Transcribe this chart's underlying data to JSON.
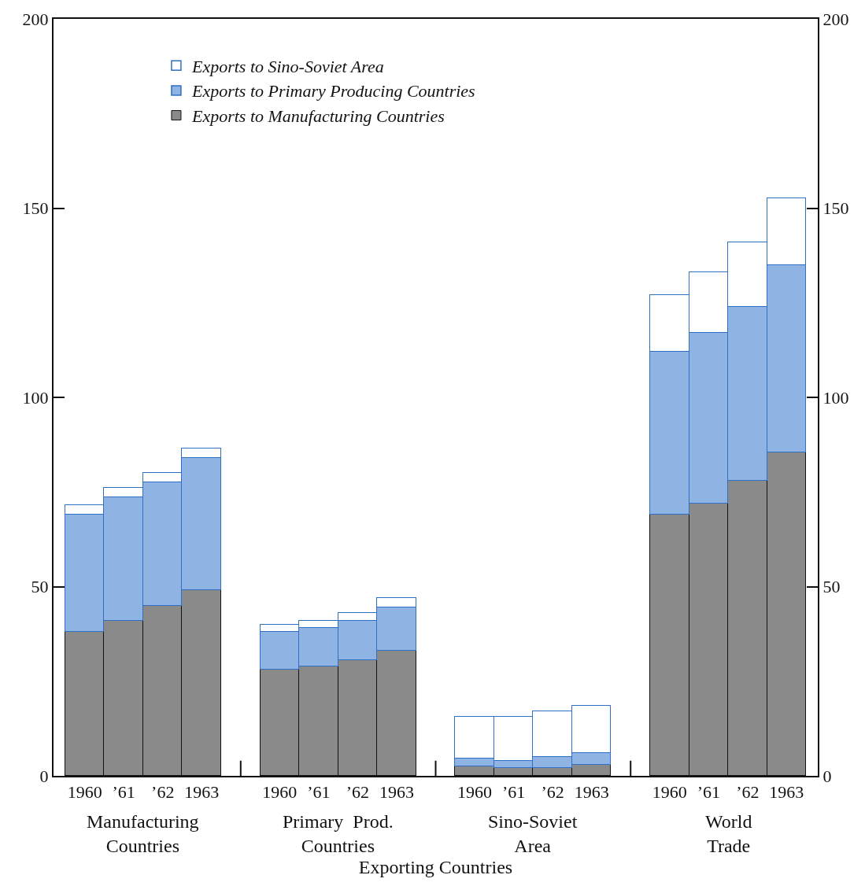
{
  "chart_data": {
    "type": "bar",
    "stacked": true,
    "xlabel": "Exporting Countries",
    "categories": [
      "1960",
      "’61",
      "’62",
      "1963",
      null,
      "1960",
      "’61",
      "’62",
      "1963",
      null,
      "1960",
      "’61",
      "’62",
      "1963",
      null,
      "1960",
      "’61",
      "’62",
      "1963"
    ],
    "series": [
      {
        "name": "Exports to Manufacturing Countries",
        "color": "#8a8a8a",
        "values": [
          38,
          41,
          45,
          49,
          null,
          28,
          29,
          30.5,
          33,
          null,
          2.5,
          2,
          2,
          3,
          null,
          69,
          72,
          78,
          85.5
        ]
      },
      {
        "name": "Exports to Primary Producing Countries",
        "color": "#8fb3e3",
        "values": [
          31,
          32.5,
          32.5,
          35,
          null,
          10,
          10,
          10.5,
          11.5,
          null,
          2,
          2,
          3,
          3,
          null,
          43,
          45,
          46,
          49.5
        ]
      },
      {
        "name": "Exports to Sino-Soviet Area",
        "color": "#ffffff",
        "values": [
          2.5,
          2.5,
          2.5,
          2.5,
          null,
          2,
          2,
          2,
          2.5,
          null,
          11,
          11.5,
          12,
          12.5,
          null,
          15,
          16,
          17,
          17.5
        ]
      }
    ],
    "annotations": [
      "Manufacturing\nCountries",
      "Primary  Prod.\nCountries",
      "Sino-Soviet\nArea",
      "World\nTrade"
    ],
    "ylim": [
      0,
      200
    ],
    "yticks": [
      0,
      50,
      100,
      150,
      200
    ],
    "y2lim": [
      0,
      200
    ],
    "y2ticks": [
      0,
      50,
      100,
      150,
      200
    ],
    "legend": "top left"
  }
}
